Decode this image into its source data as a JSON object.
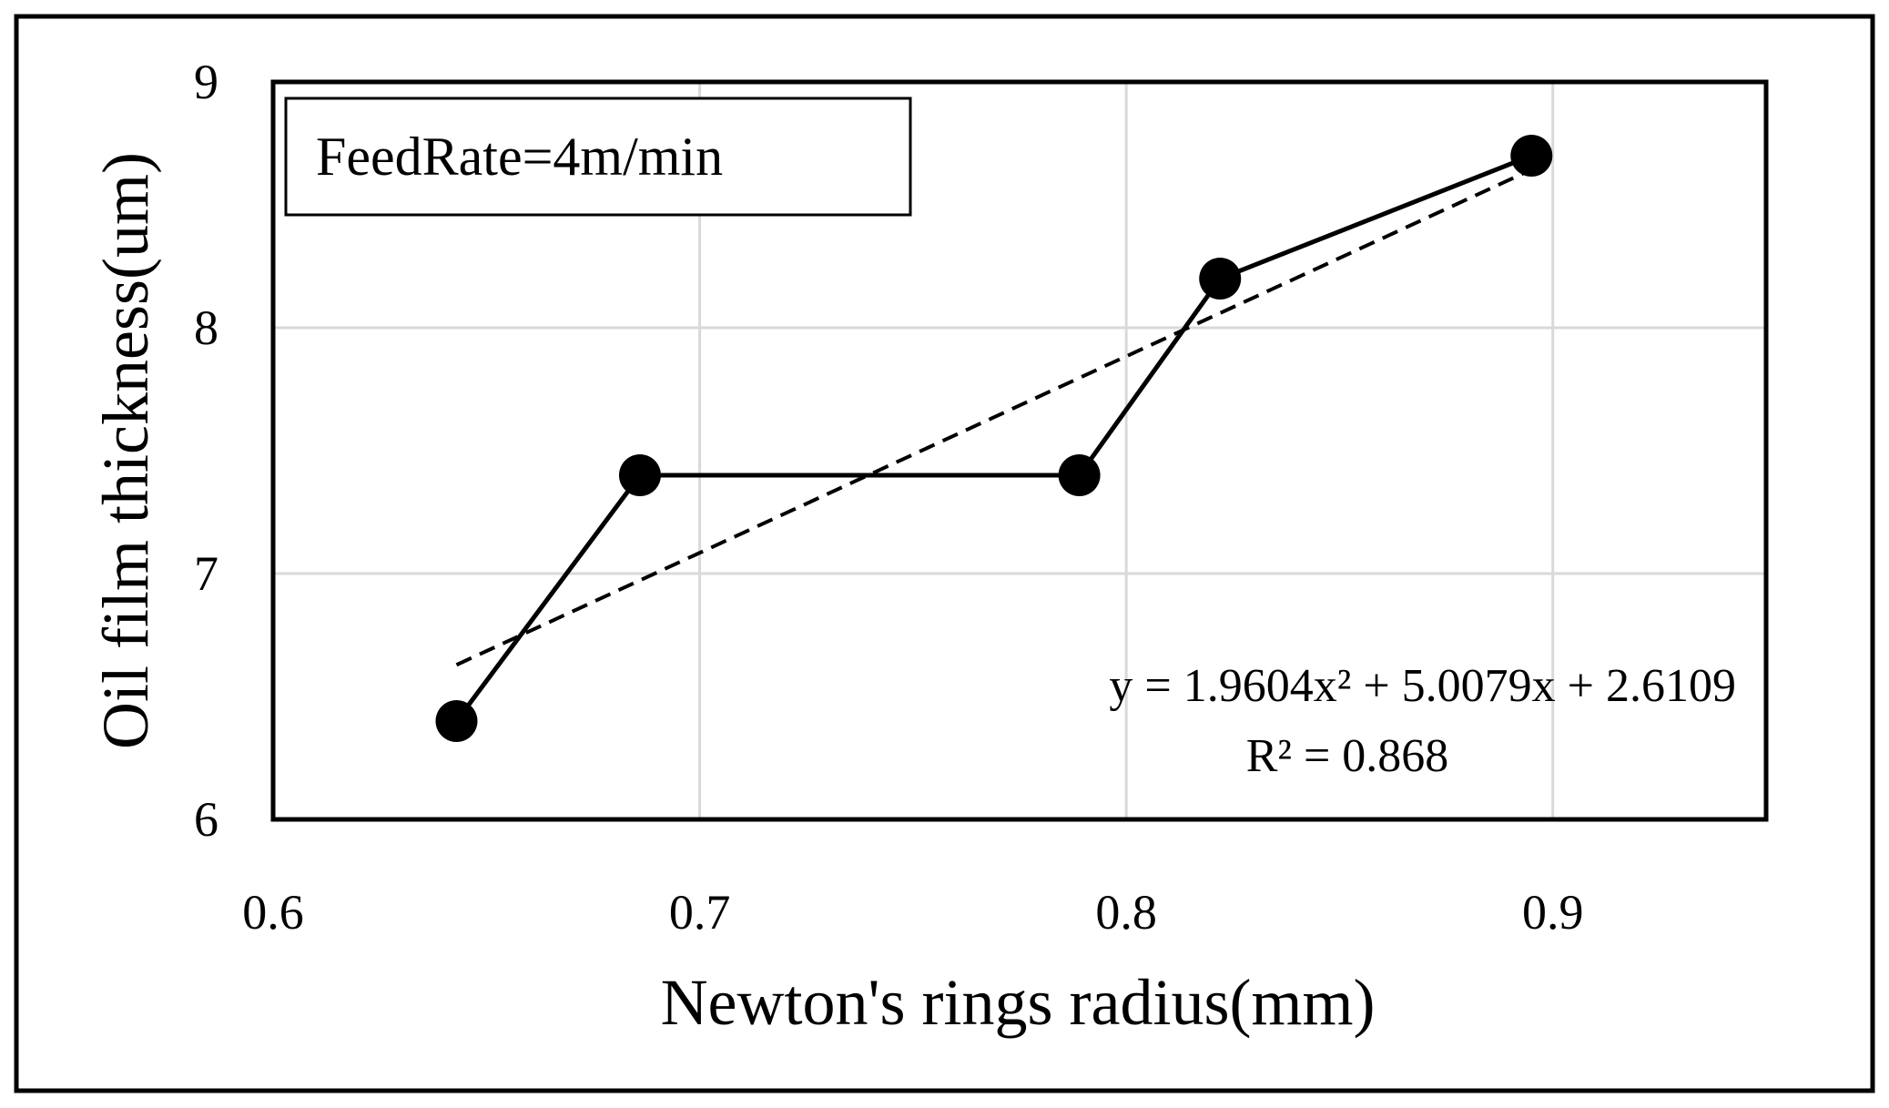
{
  "chart_data": {
    "type": "line",
    "annotation": "FeedRate=4m/min",
    "xlabel": "Newton's rings radius(mm)",
    "ylabel": "Oil film thickness(um)",
    "xlim": [
      0.6,
      0.95
    ],
    "ylim": [
      6,
      9
    ],
    "xticks": [
      "0.6",
      "0.7",
      "0.8",
      "0.9"
    ],
    "yticks": [
      "6",
      "7",
      "8",
      "9"
    ],
    "grid": true,
    "series": [
      {
        "x": [
          0.643,
          0.686,
          0.789,
          0.822,
          0.895
        ],
        "y": [
          6.4,
          7.4,
          7.4,
          8.2,
          8.7
        ]
      }
    ],
    "trendline": {
      "style": "dashed",
      "x_range": [
        0.643,
        0.895
      ],
      "equation": "y = 1.9604x² + 5.0079x + 2.6109",
      "r_squared": "R² = 0.868"
    }
  }
}
